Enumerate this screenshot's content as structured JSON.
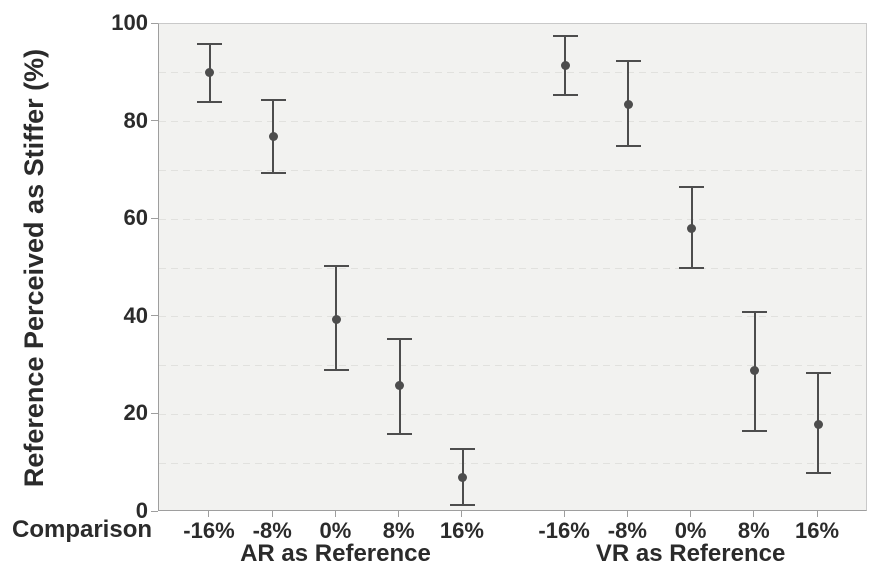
{
  "chart_data": {
    "type": "scatter",
    "subtype": "means-with-error-bars",
    "title": "",
    "ylabel": "Reference Perceived as Stiffer (%)",
    "xlabel": "Comparison",
    "ylim": [
      0,
      100
    ],
    "yticks": [
      0,
      20,
      40,
      60,
      80,
      100
    ],
    "gridlines": {
      "orientation": "horizontal",
      "style": "dashed",
      "every": 10,
      "from": 10,
      "to": 90
    },
    "legend_position": "none",
    "categories": [
      "-16%",
      "-8%",
      "0%",
      "8%",
      "16%"
    ],
    "series": [
      {
        "name": "AR as Reference",
        "means": [
          90,
          77,
          39.5,
          26,
          7
        ],
        "ci_low": [
          84,
          69.5,
          29,
          16,
          1.5
        ],
        "ci_high": [
          96,
          84.5,
          50.5,
          35.5,
          13
        ]
      },
      {
        "name": "VR as Reference",
        "means": [
          91.5,
          83.5,
          58,
          29,
          18
        ],
        "ci_low": [
          85.5,
          75,
          50,
          16.5,
          8
        ],
        "ci_high": [
          97.5,
          92.5,
          66.5,
          41,
          28.5
        ]
      }
    ],
    "colors": {
      "marker": "#4d4d4d",
      "text": "#2b2b2b",
      "plot_bg": "#f2f2f0",
      "gridline": "#e1e1de",
      "axis_line": "#9e9e9e",
      "border": "#c9c9c9"
    }
  }
}
